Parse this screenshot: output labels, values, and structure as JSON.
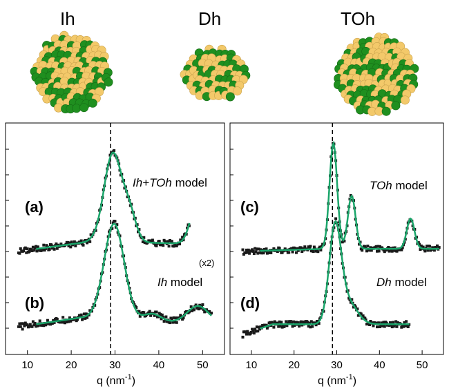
{
  "clusters": [
    {
      "label": "Ih"
    },
    {
      "label": "Dh"
    },
    {
      "label": "TOh"
    }
  ],
  "colors": {
    "atom_gold": "#f3c96a",
    "atom_green": "#1f8f1f",
    "fit_line": "#1aa56a",
    "data_marker": "#1a1a1a"
  },
  "chart_data": [
    {
      "type": "scatter",
      "panel": "left",
      "xlabel": "q (nm",
      "xlabel_sup": "-1",
      "xlabel_tail": ")",
      "xlim": [
        5,
        55
      ],
      "ylim": [
        0,
        4.6
      ],
      "xticks": [
        10,
        20,
        30,
        40,
        50
      ],
      "reference_line_x": 29,
      "note": "(x2)",
      "series": [
        {
          "label": "(a)",
          "model_italic": "Ih+TOh",
          "model_text": " model",
          "offset": 2.05,
          "peaks": [
            [
              29.5,
              1.75,
              2.0
            ],
            [
              33.3,
              0.55,
              1.5
            ],
            [
              49.0,
              0.9,
              1.6
            ]
          ],
          "baseline": [
            [
              8,
              0.0
            ],
            [
              25,
              0.2
            ],
            [
              47,
              0.15
            ]
          ],
          "cutoff": 47
        },
        {
          "label": "(b)",
          "model_italic": "Ih",
          "model_text": " model",
          "offset": 0.55,
          "peaks": [
            [
              29.8,
              1.9,
              2.3
            ],
            [
              38.5,
              0.15,
              2.0
            ],
            [
              49.0,
              0.35,
              2.5
            ]
          ],
          "baseline": [
            [
              8,
              0.0
            ],
            [
              22,
              0.18
            ],
            [
              52,
              0.05
            ]
          ],
          "cutoff": 52
        }
      ]
    },
    {
      "type": "scatter",
      "panel": "right",
      "xlabel": "q (nm",
      "xlabel_sup": "-1",
      "xlabel_tail": ")",
      "xlim": [
        5,
        55
      ],
      "ylim": [
        0,
        4.6
      ],
      "xticks": [
        10,
        20,
        30,
        40,
        50
      ],
      "reference_line_x": 29,
      "series": [
        {
          "label": "(c)",
          "model_italic": "TOh",
          "model_text": " model",
          "offset": 2.05,
          "peaks": [
            [
              29.2,
              2.1,
              0.9
            ],
            [
              33.5,
              1.05,
              0.9
            ],
            [
              47.3,
              0.6,
              0.9
            ]
          ],
          "baseline": [
            [
              8,
              0.0
            ],
            [
              28,
              0.05
            ],
            [
              54,
              0.05
            ]
          ],
          "cutoff": 54
        },
        {
          "label": "(d)",
          "model_italic": "Dh",
          "model_text": " model",
          "offset": 0.4,
          "peaks": [
            [
              29.6,
              1.85,
              1.4
            ],
            [
              32.5,
              0.45,
              2.2
            ]
          ],
          "baseline": [
            [
              8,
              0.0
            ],
            [
              15,
              0.2
            ],
            [
              47,
              0.2
            ]
          ],
          "cutoff": 47
        }
      ]
    }
  ]
}
